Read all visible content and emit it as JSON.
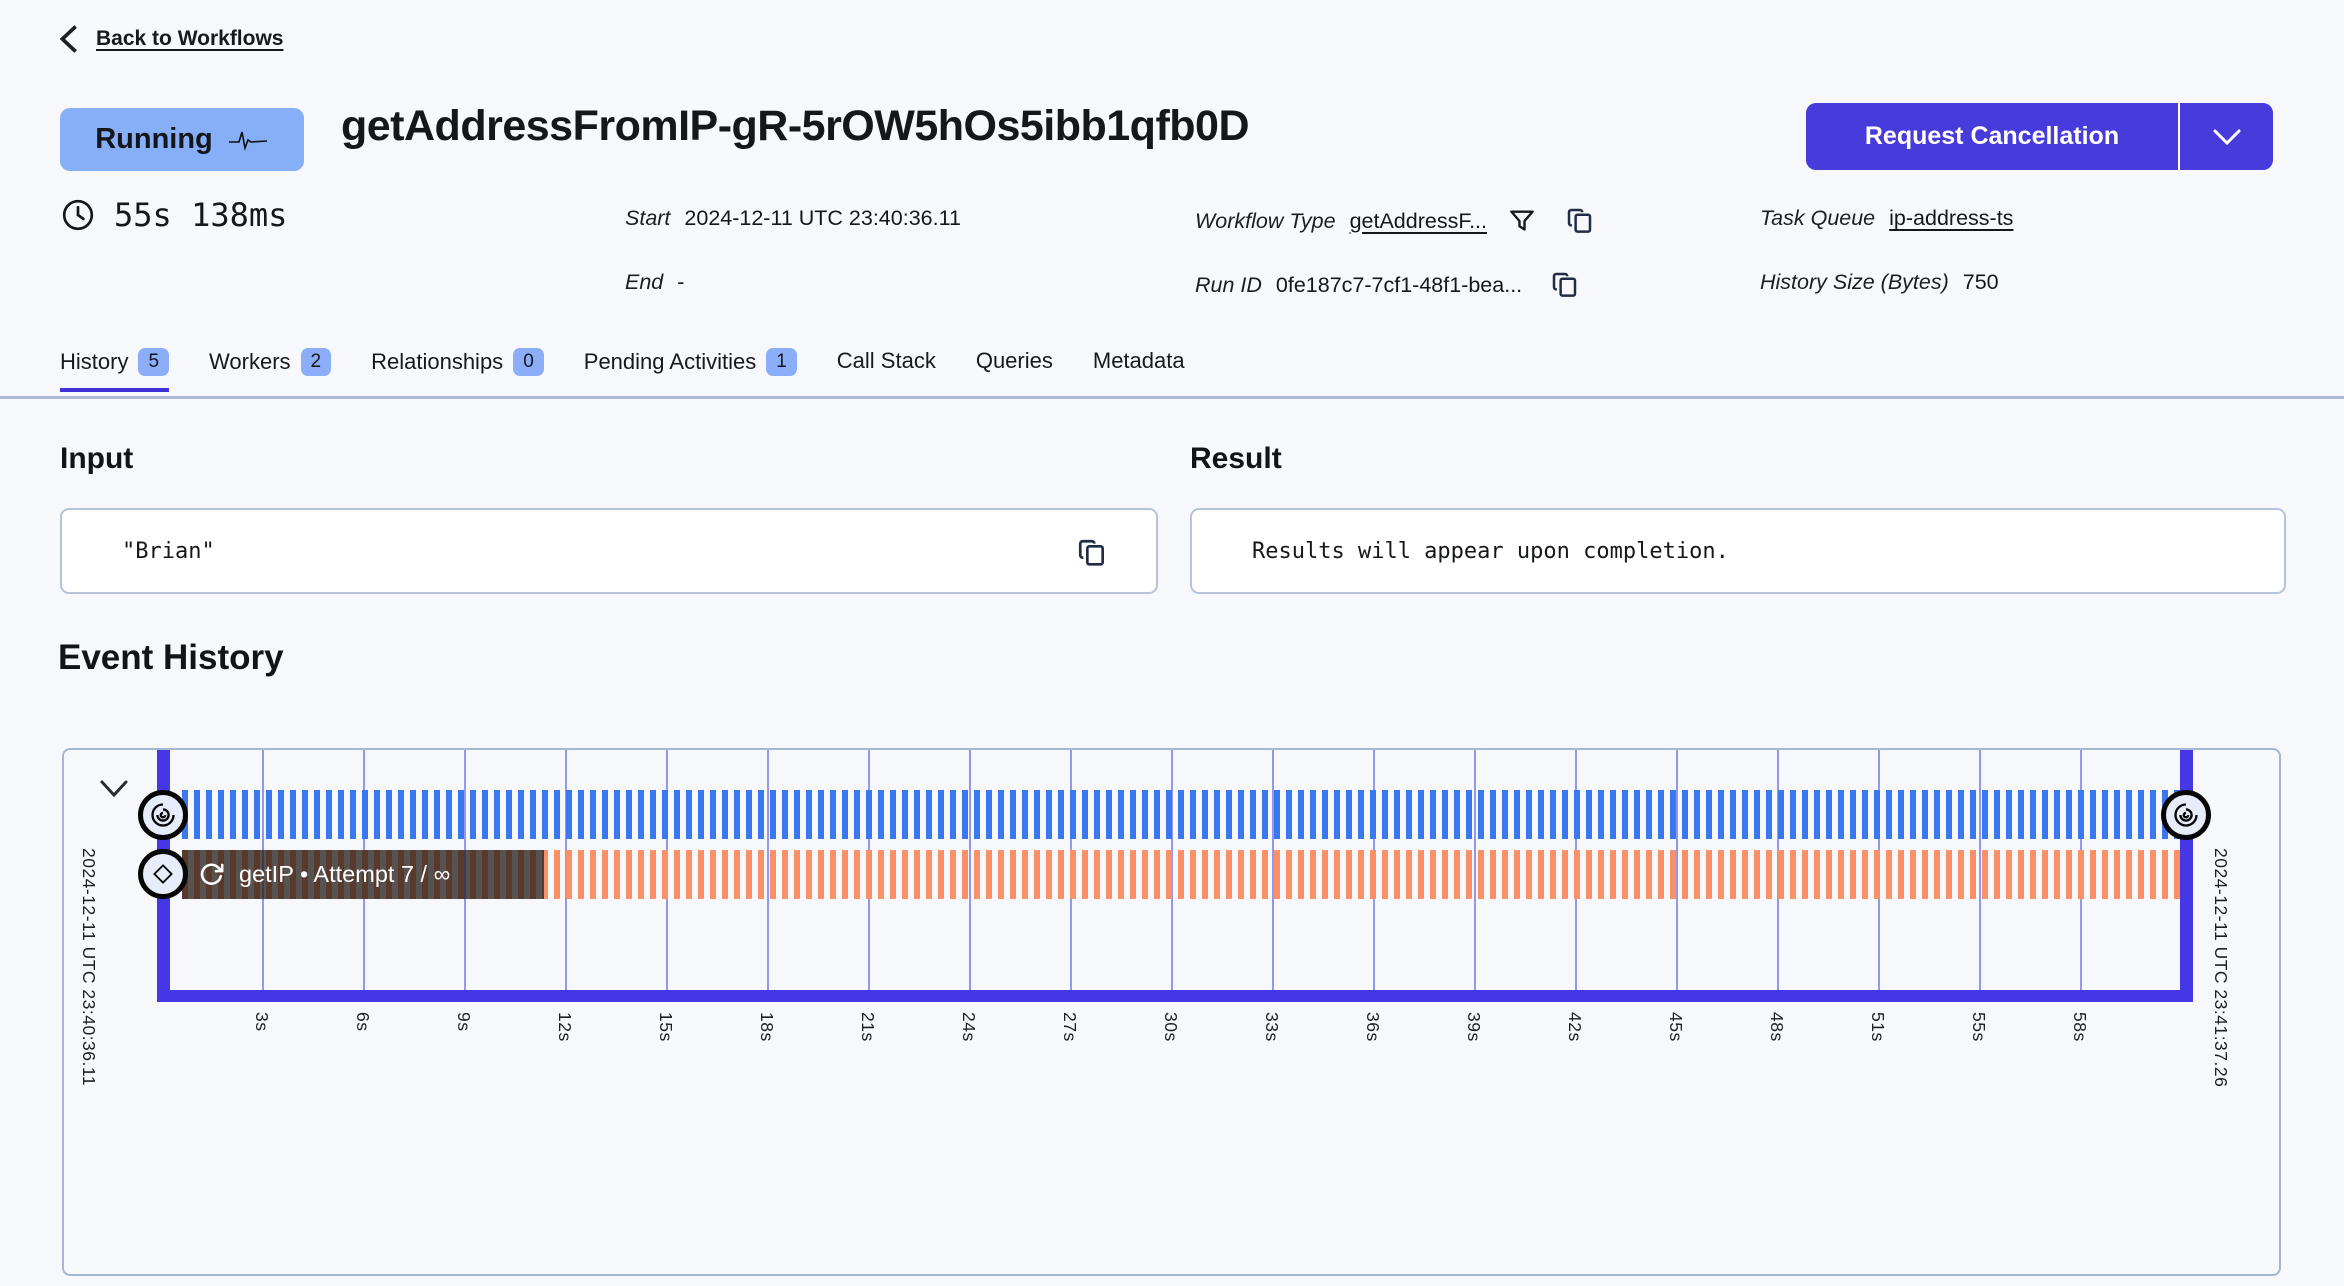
{
  "page": {
    "back_link": "Back to Workflows"
  },
  "header": {
    "status": "Running",
    "title": "getAddressFromIP-gR-5rOW5hOs5ibb1qfb0D",
    "cancel_button": "Request Cancellation",
    "duration": "55s 138ms"
  },
  "meta": {
    "start_label": "Start",
    "start_value": "2024-12-11 UTC 23:40:36.11",
    "end_label": "End",
    "end_value": "-",
    "workflow_type_label": "Workflow Type",
    "workflow_type_value": "getAddressF...",
    "run_id_label": "Run ID",
    "run_id_value": "0fe187c7-7cf1-48f1-bea...",
    "task_queue_label": "Task Queue",
    "task_queue_value": "ip-address-ts",
    "history_size_label": "History Size (Bytes)",
    "history_size_value": "750"
  },
  "tabs": [
    {
      "label": "History",
      "count": "5",
      "active": true
    },
    {
      "label": "Workers",
      "count": "2",
      "active": false
    },
    {
      "label": "Relationships",
      "count": "0",
      "active": false
    },
    {
      "label": "Pending Activities",
      "count": "1",
      "active": false
    },
    {
      "label": "Call Stack",
      "count": null,
      "active": false
    },
    {
      "label": "Queries",
      "count": null,
      "active": false
    },
    {
      "label": "Metadata",
      "count": null,
      "active": false
    }
  ],
  "input_section": {
    "title": "Input",
    "value": "\"Brian\""
  },
  "result_section": {
    "title": "Result",
    "value": "Results will appear upon completion."
  },
  "event_history": {
    "title": "Event History",
    "start_time": "2024-12-11 UTC 23:40:36.11",
    "end_time": "2024-12-11 UTC 23:41:37.26",
    "activity_label": "getIP • Attempt 7 / ∞",
    "tick_labels": [
      "3s",
      "6s",
      "9s",
      "12s",
      "15s",
      "18s",
      "21s",
      "24s",
      "27s",
      "30s",
      "33s",
      "36s",
      "39s",
      "42s",
      "45s",
      "48s",
      "51s",
      "55s",
      "58s"
    ]
  },
  "colors": {
    "accent_indigo": "#473cdb",
    "timeline_bar": "#4637e6",
    "status_badge": "#86aff8",
    "heartbeat_stripe_blue": "#3b78ef",
    "retry_stripe_orange": "#fa9068",
    "gridline": "#9098ef",
    "tab_underline": "#4130d8"
  }
}
